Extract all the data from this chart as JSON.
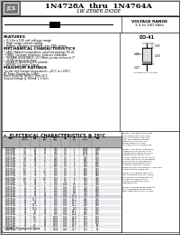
{
  "title_main": "1N4728A  thru  1N4764A",
  "title_sub": "1W ZENER DIODE",
  "voltage_range_label": "VOLTAGE RANGE",
  "voltage_range_val": "3.3 to 100 Volts",
  "features_title": "FEATURES",
  "features": [
    "3.3 thru 100 volt voltage range",
    "High surge current rating",
    "Higher voltages available: see 1N5 series"
  ],
  "mech_title": "MECHANICAL CHARACTERISTICS",
  "mech": [
    "CASE: Molded encapsulation, axial lead package DO-41.",
    "FINISH: Corrosion resistance, leads are solderable.",
    "THERMAL RESISTANCE: 50°C/Watt junction to heat at 3\"",
    "  0.375 inches from body.",
    "POLARITY: Banded end is cathode.",
    "WEIGHT: 0.4 grams Typical."
  ],
  "max_title": "MAXIMUM RATINGS",
  "max_ratings": [
    "Junction and Storage temperatures: −65°C to +200°C",
    "DC Power Dissipation: 1 Watt",
    "Power Derating: 6mW/°C from 50°C",
    "Forward Voltage @ 200mA: 1.2 Volts"
  ],
  "elec_title": "•  ELECTRICAL CHARACTERISTICS @ 25°C",
  "col_headers": [
    "TYPE\nNO.",
    "NOMINAL\nZENER\nVOLT.\nVz(V)",
    "TEST\nCURR.\nmA\nIzT",
    "MAX\nZENER\nIMPED.\n@ IzT\nZzT(Ω)",
    "MAX\nZENER\nIMPED.\n@ IzK\nZzK(Ω)",
    "LEAKAGE\nCURRENT\nμA\nIR",
    "REVERSE\nVOLT.\n(V)\nVR",
    "SURGE\nCURRENT\nmA\nIF(mA)",
    "MAX DC\nZENER\nCURR.\nmA\nIzM"
  ],
  "table_data": [
    [
      "1N4728A",
      "3.3",
      "76",
      "10",
      "400",
      "1.0",
      "1",
      "1380",
      "1060"
    ],
    [
      "1N4729A",
      "3.6",
      "69",
      "10",
      "400",
      "1.0",
      "1",
      "1190",
      "970"
    ],
    [
      "1N4730A",
      "3.9",
      "64",
      "9",
      "400",
      "1.0",
      "1",
      "1070",
      "890"
    ],
    [
      "1N4731A",
      "4.3",
      "58",
      "9",
      "400",
      "1.0",
      "1",
      "970",
      "810"
    ],
    [
      "1N4732A",
      "4.7",
      "53",
      "8",
      "500",
      "1.0",
      "1",
      "890",
      "750"
    ],
    [
      "1N4733A",
      "5.1",
      "49",
      "7",
      "550",
      "1.0",
      "2",
      "810",
      "690"
    ],
    [
      "1N4734A",
      "5.6",
      "45",
      "5",
      "600",
      "1.0",
      "2",
      "740",
      "630"
    ],
    [
      "1N4735A",
      "6.2",
      "41",
      "2",
      "700",
      "1.0",
      "3",
      "640",
      "570"
    ],
    [
      "1N4736A",
      "6.8",
      "37",
      "3.5",
      "700",
      "1.0",
      "4",
      "620",
      "530"
    ],
    [
      "1N4737A",
      "7.5",
      "34",
      "4",
      "700",
      "0.5",
      "5",
      "575",
      "480"
    ],
    [
      "1N4738A",
      "8.2",
      "31",
      "4.5",
      "700",
      "0.5",
      "6",
      "550",
      "440"
    ],
    [
      "1N4739A",
      "9.1",
      "28",
      "5",
      "700",
      "0.5",
      "7",
      "470",
      "390"
    ],
    [
      "1N4740A",
      "10",
      "25",
      "7",
      "700",
      "0.25",
      "7.6",
      "454",
      "350"
    ],
    [
      "1N4741A",
      "11",
      "23",
      "8",
      "700",
      "0.25",
      "8.4",
      "414",
      "320"
    ],
    [
      "1N4742A",
      "12",
      "21",
      "9",
      "700",
      "0.25",
      "9.1",
      "380",
      "290"
    ],
    [
      "1N4743A",
      "13",
      "19",
      "10",
      "700",
      "0.25",
      "9.9",
      "344",
      "270"
    ],
    [
      "1N4744A",
      "15",
      "17",
      "14",
      "700",
      "0.25",
      "11.4",
      "310",
      "240"
    ],
    [
      "1N4745A",
      "16",
      "15.5",
      "16",
      "700",
      "0.25",
      "12.2",
      "296",
      "225"
    ],
    [
      "1N4746A",
      "18",
      "14",
      "20",
      "750",
      "0.25",
      "13.7",
      "270",
      "200"
    ],
    [
      "1N4747A",
      "20",
      "12.5",
      "22",
      "750",
      "0.25",
      "15.2",
      "246",
      "180"
    ],
    [
      "1N4748A",
      "22",
      "11.5",
      "23",
      "750",
      "0.25",
      "16.7",
      "225",
      "160"
    ],
    [
      "1N4749A",
      "24",
      "10",
      "25",
      "750",
      "0.25",
      "18.2",
      "210",
      "150"
    ],
    [
      "1N4750A",
      "27",
      "9.5",
      "35",
      "750",
      "0.25",
      "20.6",
      "191",
      "135"
    ],
    [
      "1N4751A",
      "30",
      "8.5",
      "40",
      "1000",
      "0.25",
      "22.8",
      "172",
      "120"
    ],
    [
      "1N4752A",
      "33",
      "7.5",
      "45",
      "1000",
      "0.25",
      "25.1",
      "157",
      "110"
    ],
    [
      "1N4753A",
      "36",
      "7",
      "50",
      "1000",
      "0.25",
      "27.4",
      "144",
      "100"
    ],
    [
      "1N4754A",
      "39",
      "6.5",
      "60",
      "1000",
      "0.25",
      "29.7",
      "133",
      "90"
    ],
    [
      "1N4755A",
      "43",
      "6",
      "70",
      "1500",
      "0.25",
      "32.7",
      "121",
      "83"
    ],
    [
      "1N4756A",
      "47",
      "5.5",
      "80",
      "1500",
      "0.25",
      "35.8",
      "110",
      "76"
    ],
    [
      "1N4757A",
      "51",
      "5",
      "95",
      "1500",
      "0.25",
      "38.9",
      "100",
      "70"
    ],
    [
      "1N4758A",
      "56",
      "4.5",
      "110",
      "2000",
      "0.25",
      "42.6",
      "91",
      "64"
    ],
    [
      "1N4759A",
      "62",
      "4",
      "125",
      "2000",
      "0.25",
      "47.1",
      "83",
      "58"
    ],
    [
      "1N4760A",
      "68",
      "3.7",
      "150",
      "2000",
      "0.25",
      "51.7",
      "75",
      "53"
    ],
    [
      "1N4761A",
      "75",
      "3.3",
      "175",
      "2000",
      "0.25",
      "56.0",
      "68",
      "48"
    ],
    [
      "1N4762A",
      "82",
      "2.8",
      "200",
      "3000",
      "0.25",
      "62.2",
      "62",
      "43"
    ],
    [
      "1N4763A",
      "91",
      "2.5",
      "250",
      "3000",
      "0.25",
      "69.2",
      "56",
      "39"
    ],
    [
      "1N4764A",
      "100",
      "2.5",
      "350",
      "3000",
      "0.25",
      "76.0",
      "51",
      "35"
    ]
  ],
  "highlight_row": 16,
  "do41_label": "DO-41",
  "jedec_text": "* JEDEC Registered Data",
  "notes": [
    "NOTE 1: The JEDEC type num-",
    "bers shown have a 5% (5%)",
    "ance on nominal zener volt-",
    "age. This tolerance is deter-",
    "mined 5% by the 5% by",
    "measurement 2-3, and",
    "5%-significant 1% tolerances.",
    " ",
    "NOTE 2: The Zener impedance",
    "is derived from the DC Vo at",
    "voltage which based which an",
    "obtained from the DC point",
    "current loading at any DC public",
    "current 1.5y on 5y 1% expected",
    "paired 5V to 1V the Zener im-",
    "pedance is measured at two",
    "points by linearity is strictly",
    "known for this characteristic curve and",
    "characteristics visible unit.",
    " ",
    "NOTE 3: The power range Cur-",
    "rent is measured at 25°C ambi-",
    "ent using a 1V square-wave of",
    "0.25mS at some pulse of",
    "100 second duration super-",
    "imposed on fly.",
    " ",
    "NOTE 4: Voltage measurements",
    "to be performed DC seconds",
    "after application of DC current."
  ],
  "copyright": "SEMICONDUCTOR SYSTEMS INC. 2003"
}
